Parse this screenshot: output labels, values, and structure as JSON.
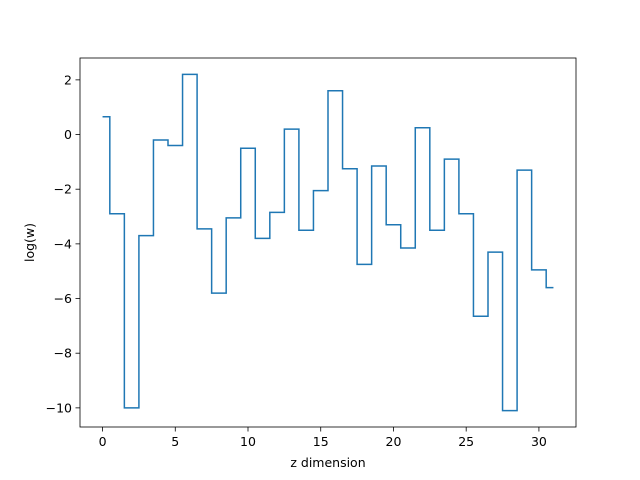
{
  "chart_data": {
    "type": "line",
    "drawstyle": "steps-mid",
    "title": "",
    "xlabel": "z dimension",
    "ylabel": "log(w)",
    "xlim": [
      -1.55,
      32.55
    ],
    "ylim": [
      -10.7,
      2.8
    ],
    "xticks": [
      0,
      5,
      10,
      15,
      20,
      25,
      30
    ],
    "yticks": [
      2,
      0,
      -2,
      -4,
      -6,
      -8,
      -10
    ],
    "ytick_labels": [
      "2",
      "0",
      "−2",
      "−4",
      "−6",
      "−8",
      "−10"
    ],
    "grid": false,
    "line_color": "#1f77b4",
    "x": [
      0,
      1,
      2,
      3,
      4,
      5,
      6,
      7,
      8,
      9,
      10,
      11,
      12,
      13,
      14,
      15,
      16,
      17,
      18,
      19,
      20,
      21,
      22,
      23,
      24,
      25,
      26,
      27,
      28,
      29,
      30,
      31
    ],
    "y": [
      0.65,
      -2.9,
      -10.0,
      -3.7,
      -0.2,
      -0.4,
      2.2,
      -3.45,
      -5.8,
      -3.05,
      -0.5,
      -3.8,
      -2.85,
      0.2,
      -3.5,
      -2.05,
      1.6,
      -1.25,
      -4.75,
      -1.15,
      -3.3,
      -4.15,
      0.25,
      -3.5,
      -0.9,
      -2.9,
      -6.65,
      -4.3,
      -10.1,
      -1.3,
      -4.95,
      -5.6
    ]
  }
}
